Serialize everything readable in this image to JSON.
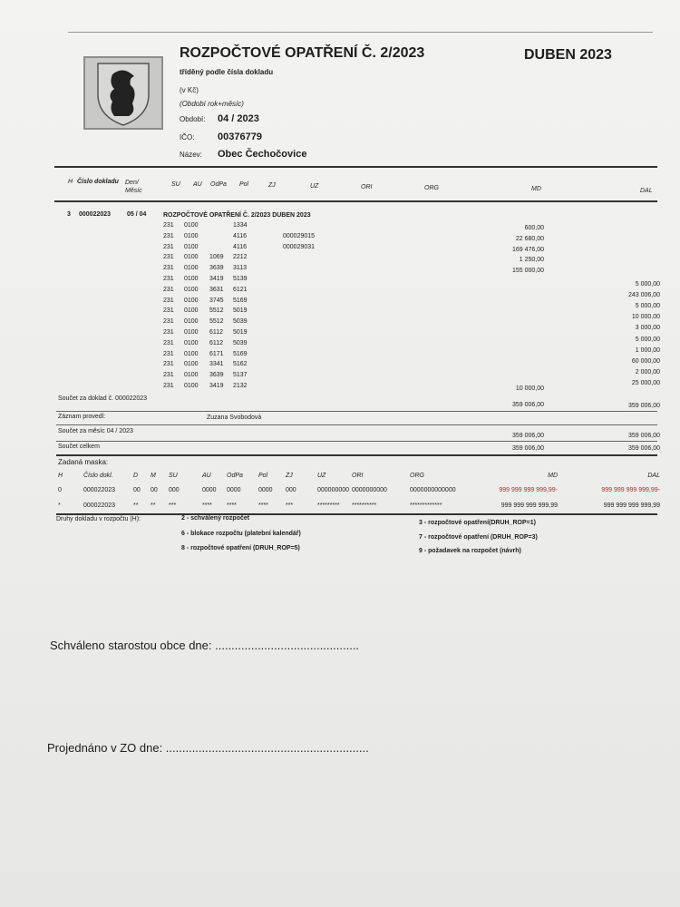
{
  "header": {
    "title": "ROZPOČTOVÉ OPATŘENÍ Č. 2/2023",
    "period_title": "DUBEN 2023",
    "subtitle": "tříděný podle čísla dokladu",
    "currency": "(v Kč)",
    "period_hint": "(Období rok+měsíc)",
    "period_label": "Období:",
    "period_value": "04 / 2023",
    "ico_label": "IČO:",
    "ico_value": "00376779",
    "name_label": "Název:",
    "name_value": "Obec Čechočovice"
  },
  "columns": {
    "h": "H",
    "doc": "Číslo dokladu",
    "den": "Den/",
    "mesic": "Měsíc",
    "su": "SU",
    "au": "AU",
    "odpa": "OdPa",
    "pol": "Pol",
    "zj": "ZJ",
    "uz": "UZ",
    "ori": "ORI",
    "org": "ORG",
    "md": "MD",
    "dal": "DAL"
  },
  "document": {
    "h": "3",
    "number": "000022023",
    "date": "05 / 04",
    "description": "ROZPOČTOVÉ OPATŘENÍ Č. 2/2023  DUBEN 2023"
  },
  "rows": [
    {
      "su": "231",
      "au": "0100",
      "odpa": "",
      "pol": "1334",
      "uz": "",
      "md": "600,00",
      "dal": ""
    },
    {
      "su": "231",
      "au": "0100",
      "odpa": "",
      "pol": "4116",
      "uz": "000029015",
      "md": "22 680,00",
      "dal": ""
    },
    {
      "su": "231",
      "au": "0100",
      "odpa": "",
      "pol": "4116",
      "uz": "000029031",
      "md": "169 476,00",
      "dal": ""
    },
    {
      "su": "231",
      "au": "0100",
      "odpa": "1069",
      "pol": "2212",
      "uz": "",
      "md": "1 250,00",
      "dal": ""
    },
    {
      "su": "231",
      "au": "0100",
      "odpa": "3639",
      "pol": "3113",
      "uz": "",
      "md": "155 000,00",
      "dal": ""
    },
    {
      "su": "231",
      "au": "0100",
      "odpa": "3419",
      "pol": "5139",
      "uz": "",
      "md": "",
      "dal": "5 000,00"
    },
    {
      "su": "231",
      "au": "0100",
      "odpa": "3631",
      "pol": "6121",
      "uz": "",
      "md": "",
      "dal": "243 006,00"
    },
    {
      "su": "231",
      "au": "0100",
      "odpa": "3745",
      "pol": "5169",
      "uz": "",
      "md": "",
      "dal": "5 000,00"
    },
    {
      "su": "231",
      "au": "0100",
      "odpa": "5512",
      "pol": "5019",
      "uz": "",
      "md": "",
      "dal": "10 000,00"
    },
    {
      "su": "231",
      "au": "0100",
      "odpa": "5512",
      "pol": "5039",
      "uz": "",
      "md": "",
      "dal": "3 000,00"
    },
    {
      "su": "231",
      "au": "0100",
      "odpa": "6112",
      "pol": "5019",
      "uz": "",
      "md": "",
      "dal": "5 000,00"
    },
    {
      "su": "231",
      "au": "0100",
      "odpa": "6112",
      "pol": "5039",
      "uz": "",
      "md": "",
      "dal": "1 000,00"
    },
    {
      "su": "231",
      "au": "0100",
      "odpa": "6171",
      "pol": "5169",
      "uz": "",
      "md": "",
      "dal": "60 000,00"
    },
    {
      "su": "231",
      "au": "0100",
      "odpa": "3341",
      "pol": "5162",
      "uz": "",
      "md": "",
      "dal": "2 000,00"
    },
    {
      "su": "231",
      "au": "0100",
      "odpa": "3639",
      "pol": "5137",
      "uz": "",
      "md": "",
      "dal": "25 000,00"
    },
    {
      "su": "231",
      "au": "0100",
      "odpa": "3419",
      "pol": "2132",
      "uz": "",
      "md": "10 000,00",
      "dal": ""
    }
  ],
  "totals": {
    "doc_label": "Součet za doklad č. 000022023",
    "doc_md": "359 006,00",
    "doc_dal": "359 006,00",
    "recorded_label": "Záznam provedl:",
    "recorded_by": "Zuzana Svobodová",
    "month_label": "Součet za měsíc 04 / 2023",
    "month_md": "359 006,00",
    "month_dal": "359 006,00",
    "total_label": "Součet celkem",
    "total_md": "359 006,00",
    "total_dal": "359 006,00"
  },
  "mask": {
    "title": "Zadaná maska:",
    "headers": [
      "H",
      "Číslo dokl.",
      "D",
      "M",
      "SU",
      "AU",
      "OdPa",
      "Pol",
      "ZJ",
      "UZ",
      "ORI",
      "ORG",
      "MD",
      "DAL"
    ],
    "row_from": [
      "0",
      "000022023",
      "00",
      "00",
      "000",
      "0000",
      "0000",
      "0000",
      "000",
      "000000000",
      "0000000000",
      "0000000000000",
      "999 999 999 999,99-",
      "999 999 999 999,99-"
    ],
    "row_to": [
      "*",
      "000022023",
      "**",
      "**",
      "***",
      "****",
      "****",
      "****",
      "***",
      "*********",
      "**********",
      "*************",
      "999 999 999 999,99",
      "999 999 999 999,99"
    ]
  },
  "legend": {
    "label": "Druhy dokladu v rozpočtu (H):",
    "items": [
      "2 - schválený rozpočet",
      "3 - rozpočtové opatření(DRUH_ROP=1)",
      "6 - blokace rozpočtu (platební kalendář)",
      "7 - rozpočtové opatření (DRUH_ROP=3)",
      "8 - rozpočtové opatření (DRUH_ROP=5)",
      "9 - požadavek na rozpočet (návrh)"
    ]
  },
  "signatures": {
    "approved": "Schváleno starostou obce dne: ............................................",
    "discussed": "Projednáno v ZO dne: .............................................................."
  },
  "colors": {
    "negative": "#a33030"
  }
}
